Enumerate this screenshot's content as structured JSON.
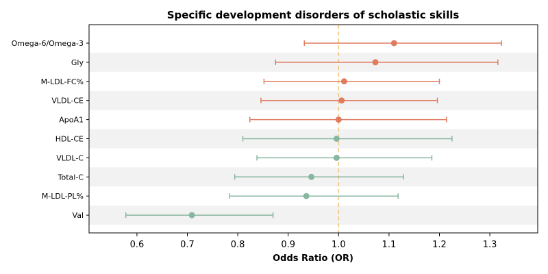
{
  "chart_data": {
    "type": "forest",
    "title": "Specific development disorders of scholastic skills",
    "xlabel": "Odds Ratio (OR)",
    "ylabel": "",
    "xlim": [
      0.505,
      1.395
    ],
    "xticks": [
      "0.6",
      "0.7",
      "0.8",
      "0.9",
      "1.0",
      "1.1",
      "1.2",
      "1.3"
    ],
    "reference_line": 1.0,
    "grid": false,
    "row_banding": true,
    "colors": {
      "positive": "#E07B5F",
      "negative": "#88B7A0",
      "reference": "#F4C57E",
      "band": "#F2F2F2"
    },
    "series": [
      {
        "label": "Omega-6/Omega-3",
        "or": 1.11,
        "lower": 0.932,
        "upper": 1.323,
        "group": "positive"
      },
      {
        "label": "Gly",
        "or": 1.073,
        "lower": 0.875,
        "upper": 1.316,
        "group": "positive"
      },
      {
        "label": "M-LDL-FC%",
        "or": 1.011,
        "lower": 0.852,
        "upper": 1.2,
        "group": "positive"
      },
      {
        "label": "VLDL-CE",
        "or": 1.006,
        "lower": 0.846,
        "upper": 1.196,
        "group": "positive"
      },
      {
        "label": "ApoA1",
        "or": 1.0,
        "lower": 0.824,
        "upper": 1.214,
        "group": "positive"
      },
      {
        "label": "HDL-CE",
        "or": 0.996,
        "lower": 0.81,
        "upper": 1.225,
        "group": "negative"
      },
      {
        "label": "VLDL-C",
        "or": 0.996,
        "lower": 0.838,
        "upper": 1.185,
        "group": "negative"
      },
      {
        "label": "Total-C",
        "or": 0.946,
        "lower": 0.794,
        "upper": 1.129,
        "group": "negative"
      },
      {
        "label": "M-LDL-PL%",
        "or": 0.936,
        "lower": 0.784,
        "upper": 1.118,
        "group": "negative"
      },
      {
        "label": "Val",
        "or": 0.709,
        "lower": 0.578,
        "upper": 0.87,
        "group": "negative"
      }
    ]
  }
}
